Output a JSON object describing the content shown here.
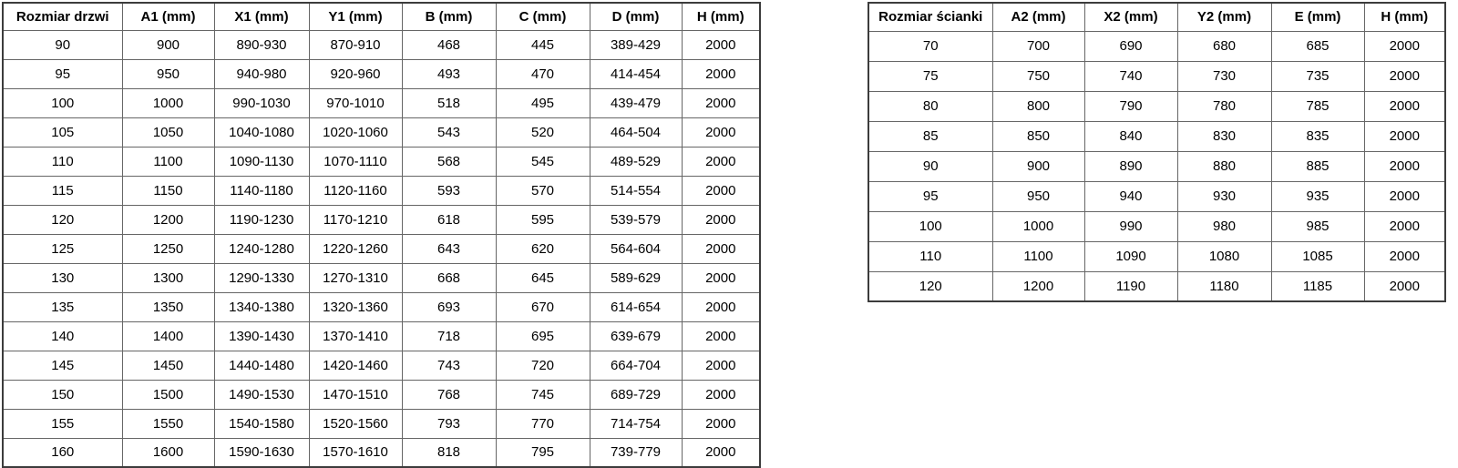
{
  "colors": {
    "background": "#ffffff",
    "text": "#000000",
    "border_inner": "#666666",
    "border_outer": "#3c3c3c"
  },
  "chart_data": [
    {
      "type": "table",
      "name": "door-sizes",
      "headers": [
        "Rozmiar drzwi",
        "A1 (mm)",
        "X1 (mm)",
        "Y1 (mm)",
        "B (mm)",
        "C (mm)",
        "D (mm)",
        "H (mm)"
      ],
      "rows": [
        [
          "90",
          "900",
          "890-930",
          "870-910",
          "468",
          "445",
          "389-429",
          "2000"
        ],
        [
          "95",
          "950",
          "940-980",
          "920-960",
          "493",
          "470",
          "414-454",
          "2000"
        ],
        [
          "100",
          "1000",
          "990-1030",
          "970-1010",
          "518",
          "495",
          "439-479",
          "2000"
        ],
        [
          "105",
          "1050",
          "1040-1080",
          "1020-1060",
          "543",
          "520",
          "464-504",
          "2000"
        ],
        [
          "110",
          "1100",
          "1090-1130",
          "1070-1110",
          "568",
          "545",
          "489-529",
          "2000"
        ],
        [
          "115",
          "1150",
          "1140-1180",
          "1120-1160",
          "593",
          "570",
          "514-554",
          "2000"
        ],
        [
          "120",
          "1200",
          "1190-1230",
          "1170-1210",
          "618",
          "595",
          "539-579",
          "2000"
        ],
        [
          "125",
          "1250",
          "1240-1280",
          "1220-1260",
          "643",
          "620",
          "564-604",
          "2000"
        ],
        [
          "130",
          "1300",
          "1290-1330",
          "1270-1310",
          "668",
          "645",
          "589-629",
          "2000"
        ],
        [
          "135",
          "1350",
          "1340-1380",
          "1320-1360",
          "693",
          "670",
          "614-654",
          "2000"
        ],
        [
          "140",
          "1400",
          "1390-1430",
          "1370-1410",
          "718",
          "695",
          "639-679",
          "2000"
        ],
        [
          "145",
          "1450",
          "1440-1480",
          "1420-1460",
          "743",
          "720",
          "664-704",
          "2000"
        ],
        [
          "150",
          "1500",
          "1490-1530",
          "1470-1510",
          "768",
          "745",
          "689-729",
          "2000"
        ],
        [
          "155",
          "1550",
          "1540-1580",
          "1520-1560",
          "793",
          "770",
          "714-754",
          "2000"
        ],
        [
          "160",
          "1600",
          "1590-1630",
          "1570-1610",
          "818",
          "795",
          "739-779",
          "2000"
        ]
      ]
    },
    {
      "type": "table",
      "name": "wall-sizes",
      "headers": [
        "Rozmiar ścianki",
        "A2 (mm)",
        "X2 (mm)",
        "Y2 (mm)",
        "E (mm)",
        "H (mm)"
      ],
      "rows": [
        [
          "70",
          "700",
          "690",
          "680",
          "685",
          "2000"
        ],
        [
          "75",
          "750",
          "740",
          "730",
          "735",
          "2000"
        ],
        [
          "80",
          "800",
          "790",
          "780",
          "785",
          "2000"
        ],
        [
          "85",
          "850",
          "840",
          "830",
          "835",
          "2000"
        ],
        [
          "90",
          "900",
          "890",
          "880",
          "885",
          "2000"
        ],
        [
          "95",
          "950",
          "940",
          "930",
          "935",
          "2000"
        ],
        [
          "100",
          "1000",
          "990",
          "980",
          "985",
          "2000"
        ],
        [
          "110",
          "1100",
          "1090",
          "1080",
          "1085",
          "2000"
        ],
        [
          "120",
          "1200",
          "1190",
          "1180",
          "1185",
          "2000"
        ]
      ]
    }
  ]
}
